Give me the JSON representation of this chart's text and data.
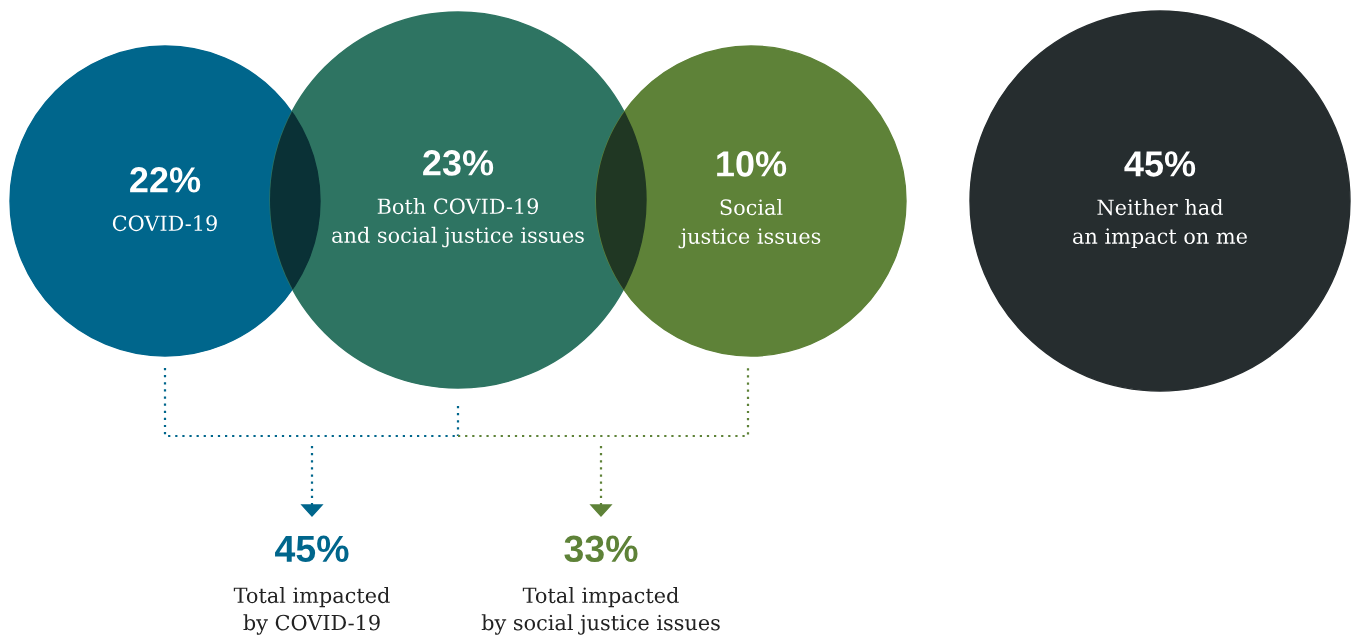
{
  "chart_data": {
    "type": "other",
    "categories": [
      "COVID-19",
      "Both COVID-19\nand social justice issues",
      "Social\njustice issues",
      "Neither had\nan impact on me"
    ],
    "values": [
      22,
      23,
      10,
      45
    ],
    "value_labels": [
      "22%",
      "23%",
      "10%",
      "45%"
    ],
    "colors": [
      "#00668c",
      "#2e7462",
      "#5e8238",
      "#262d2f"
    ],
    "totals": [
      "45%",
      "33%"
    ],
    "annotations": [
      "Total impacted\nby COVID-19",
      "Total impacted\nby social justice issues"
    ]
  }
}
